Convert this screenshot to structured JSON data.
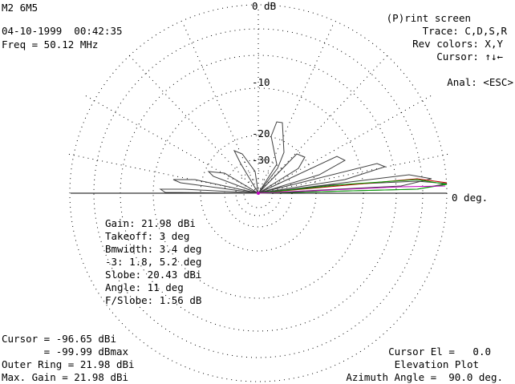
{
  "header": {
    "model": "M2 6M5",
    "datetime": "04-10-1999  00:42:35",
    "freq": "Freq = 50.12 MHz"
  },
  "menu": {
    "print": "(P)rint screen",
    "trace": "Trace: C,D,S,R",
    "rev_colors": "Rev colors: X,Y",
    "cursor": "Cursor: ↑↓←",
    "anal": "Anal: <ESC>"
  },
  "plot": {
    "top_label": "0 dB",
    "right_label": "0 deg.",
    "ring_labels": [
      "-10",
      "-20",
      "-30"
    ]
  },
  "stats": {
    "gain": "Gain: 21.98 dBi",
    "takeoff": "Takeoff: 3 deg",
    "bmwidth": "Bmwidth: 3.4 deg",
    "minus3": "-3: 1.8, 5.2 deg",
    "slobe": "Slobe: 20.43 dBi",
    "angle": "Angle: 11 deg",
    "fslobe": "F/Slobe: 1.56 dB"
  },
  "footer": {
    "cursor_dbi": "Cursor = -96.65 dBi",
    "cursor_dbmax": "       = -99.99 dBmax",
    "outer_ring": "Outer Ring = 21.98 dBi",
    "max_gain": "Max. Gain = 21.98 dBi",
    "cursor_el": "Cursor El =   0.0",
    "plot_type": "Elevation Plot",
    "azimuth": "Azimuth Angle =  90.0 deg."
  },
  "colors": {
    "background": "#ffffff",
    "text": "#000000",
    "main_trace": "#404040",
    "trace_red": "#c00000",
    "trace_green": "#00a000",
    "trace_magenta": "#c000c0",
    "grid": "#000000"
  }
}
